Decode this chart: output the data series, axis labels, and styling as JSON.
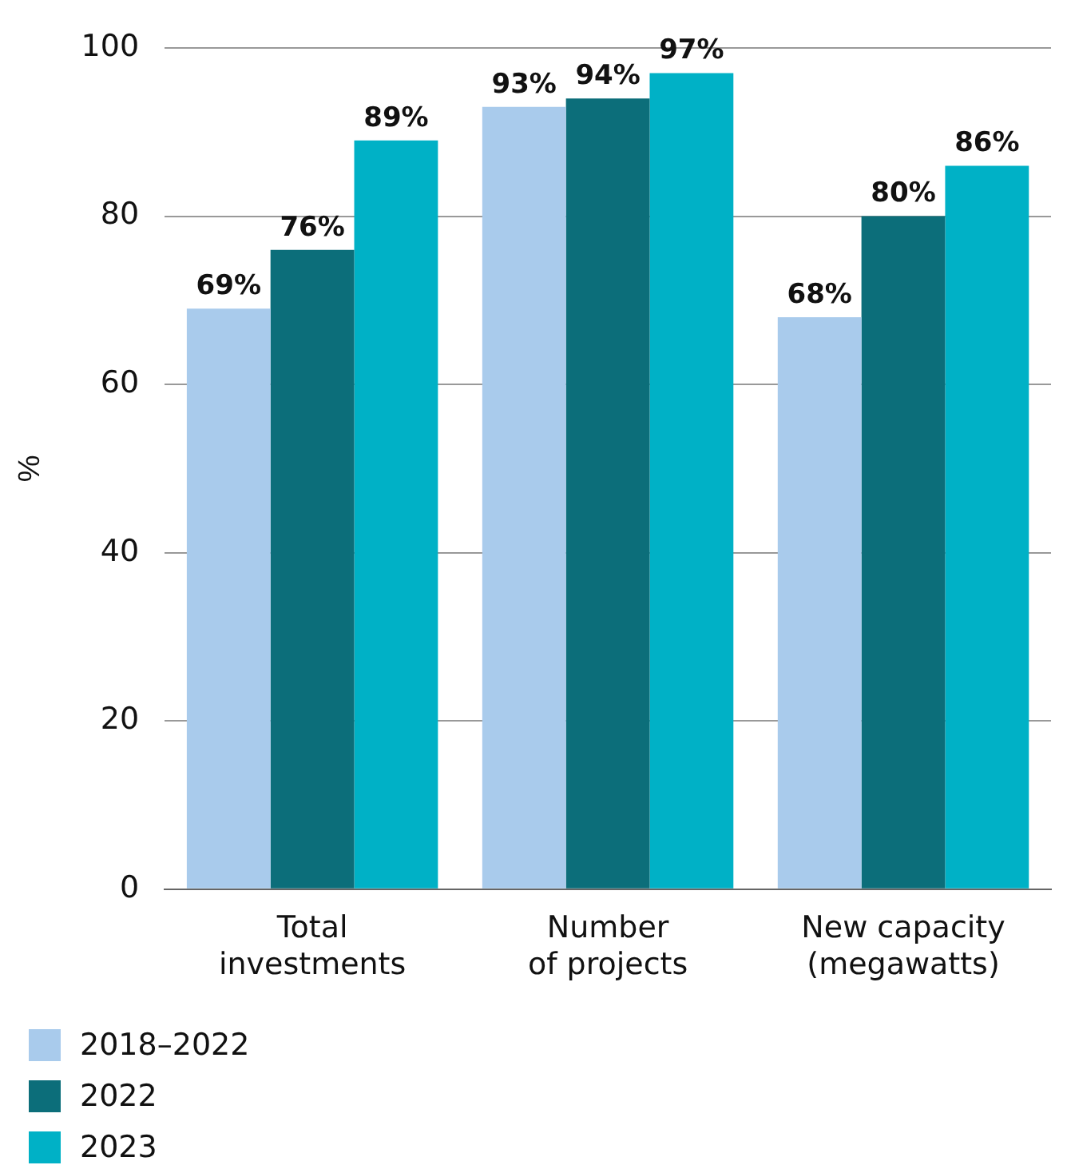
{
  "chart_data": {
    "type": "bar",
    "categories": [
      "Total\ninvestments",
      "Number\nof projects",
      "New capacity\n(megawatts)"
    ],
    "series": [
      {
        "name": "2018–2022",
        "color": "#a9cbec",
        "values": [
          69,
          93,
          68
        ],
        "value_labels": [
          "69%",
          "93%",
          "68%"
        ]
      },
      {
        "name": "2022",
        "color": "#0c6e7a",
        "values": [
          76,
          94,
          80
        ],
        "value_labels": [
          "76%",
          "94%",
          "80%"
        ]
      },
      {
        "name": "2023",
        "color": "#00b1c6",
        "values": [
          89,
          97,
          86
        ],
        "value_labels": [
          "89%",
          "97%",
          "86%"
        ]
      }
    ],
    "ylabel": "%",
    "ylim": [
      0,
      100
    ],
    "yticks": [
      0,
      20,
      40,
      60,
      80,
      100
    ],
    "grid": "y",
    "legend": "bottom left"
  }
}
